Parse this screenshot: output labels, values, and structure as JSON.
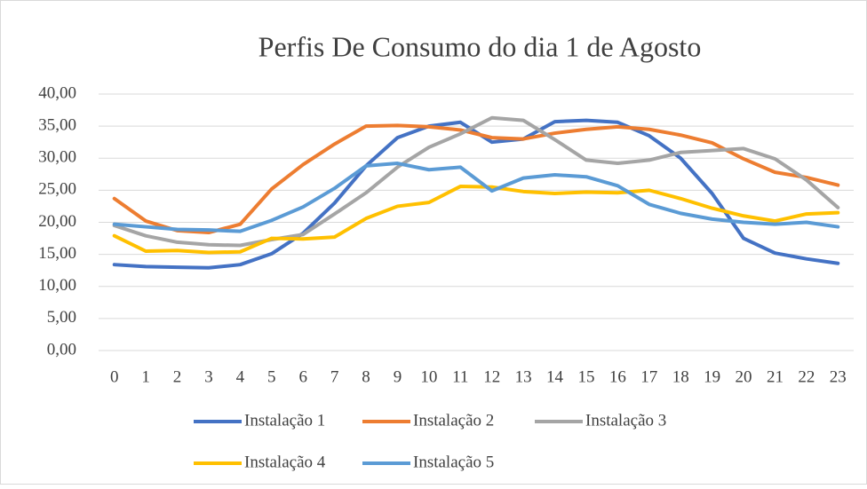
{
  "chart_data": {
    "type": "line",
    "title": "Perfis De Consumo do dia 1 de Agosto",
    "categories": [
      "0",
      "1",
      "2",
      "3",
      "4",
      "5",
      "6",
      "7",
      "8",
      "9",
      "10",
      "11",
      "12",
      "13",
      "14",
      "15",
      "16",
      "17",
      "18",
      "19",
      "20",
      "21",
      "22",
      "23"
    ],
    "series": [
      {
        "name": "Instalação 1",
        "color": "#4472c4",
        "values": [
          13.4,
          13.1,
          13.0,
          12.9,
          13.4,
          15.1,
          18.3,
          23.0,
          28.8,
          33.2,
          35.0,
          35.6,
          32.5,
          33.0,
          35.7,
          35.9,
          35.6,
          33.5,
          30.0,
          24.5,
          17.5,
          15.2,
          14.3,
          13.6
        ]
      },
      {
        "name": "Instalação 2",
        "color": "#ed7d31",
        "values": [
          23.7,
          20.2,
          18.7,
          18.4,
          19.7,
          25.2,
          29.0,
          32.2,
          35.0,
          35.1,
          34.9,
          34.4,
          33.2,
          33.0,
          33.9,
          34.5,
          34.9,
          34.5,
          33.6,
          32.4,
          29.9,
          27.8,
          27.0,
          25.8
        ]
      },
      {
        "name": "Instalação 3",
        "color": "#a5a5a5",
        "values": [
          19.5,
          17.9,
          16.9,
          16.5,
          16.4,
          17.3,
          18.1,
          21.3,
          24.6,
          28.6,
          31.7,
          33.8,
          36.3,
          35.9,
          32.9,
          29.7,
          29.2,
          29.7,
          30.9,
          31.2,
          31.5,
          29.9,
          26.6,
          22.3
        ]
      },
      {
        "name": "Instalação 4",
        "color": "#ffc000",
        "values": [
          17.9,
          15.5,
          15.6,
          15.3,
          15.4,
          17.5,
          17.4,
          17.7,
          20.6,
          22.5,
          23.1,
          25.6,
          25.5,
          24.8,
          24.5,
          24.7,
          24.6,
          25.0,
          23.7,
          22.2,
          21.0,
          20.2,
          21.3,
          21.5
        ]
      },
      {
        "name": "Instalação 5",
        "color": "#5b9bd5",
        "values": [
          19.7,
          19.3,
          18.9,
          18.8,
          18.6,
          20.3,
          22.4,
          25.3,
          28.8,
          29.2,
          28.2,
          28.6,
          24.9,
          26.9,
          27.4,
          27.1,
          25.7,
          22.8,
          21.4,
          20.5,
          20.0,
          19.7,
          20.0,
          19.3
        ]
      }
    ],
    "ylim": [
      0,
      40
    ],
    "yticks": [
      {
        "value": 0,
        "label": "0,00"
      },
      {
        "value": 5,
        "label": "5,00"
      },
      {
        "value": 10,
        "label": "10,00"
      },
      {
        "value": 15,
        "label": "15,00"
      },
      {
        "value": 20,
        "label": "20,00"
      },
      {
        "value": 25,
        "label": "25,00"
      },
      {
        "value": 30,
        "label": "30,00"
      },
      {
        "value": 35,
        "label": "35,00"
      },
      {
        "value": 40,
        "label": "40,00"
      }
    ],
    "grid": true,
    "legend": "bottom"
  }
}
